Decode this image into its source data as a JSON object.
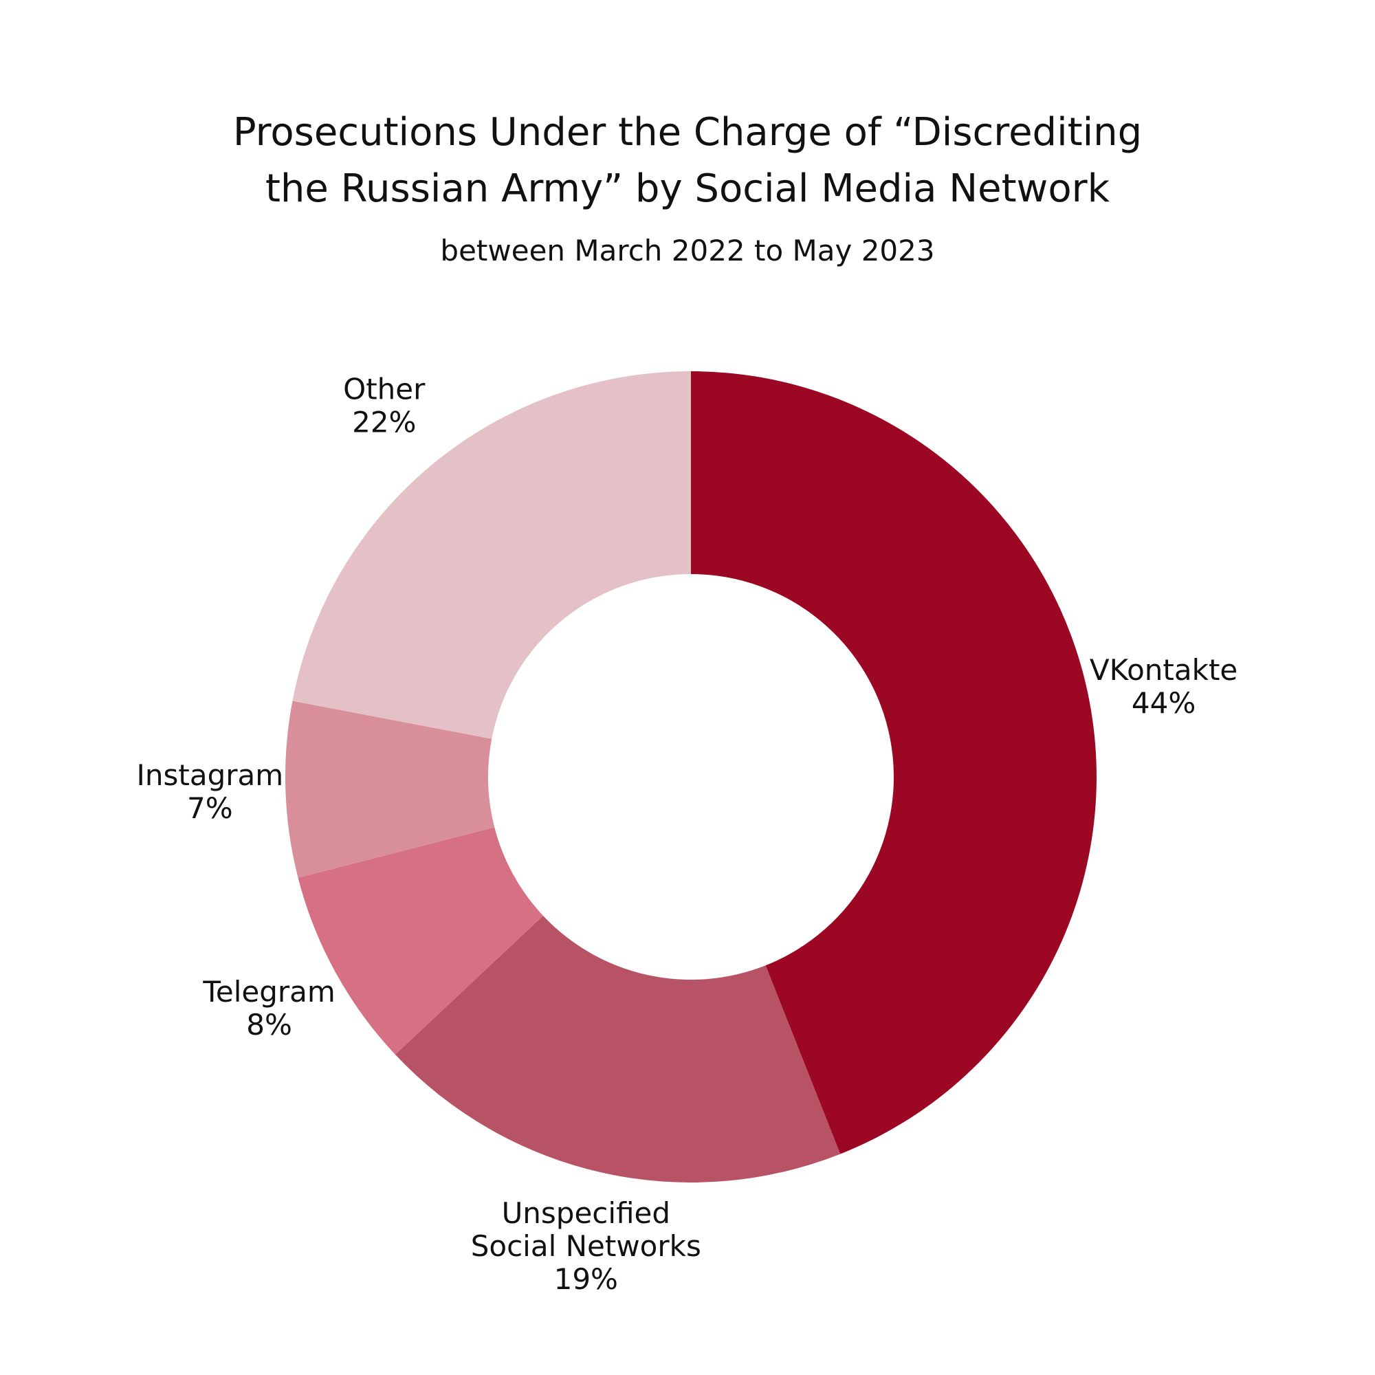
{
  "chart_data": {
    "type": "pie",
    "donut": true,
    "title_lines": [
      "Prosecutions Under the Charge of “Discrediting",
      "the Russian Army” by Social Media Network"
    ],
    "subtitle": "between March 2022 to May 2023",
    "slices": [
      {
        "label_lines": [
          "VKontakte"
        ],
        "value": 44,
        "value_label": "44%",
        "color": "#9c0823"
      },
      {
        "label_lines": [
          "Unspecified",
          "Social Networks"
        ],
        "value": 19,
        "value_label": "19%",
        "color": "#b85265"
      },
      {
        "label_lines": [
          "Telegram"
        ],
        "value": 8,
        "value_label": "8%",
        "color": "#d67083"
      },
      {
        "label_lines": [
          "Instagram"
        ],
        "value": 7,
        "value_label": "7%",
        "color": "#d98f9a"
      },
      {
        "label_lines": [
          "Other"
        ],
        "value": 22,
        "value_label": "22%",
        "color": "#e4c1c7"
      }
    ],
    "legend": "none",
    "label_position": "outside"
  }
}
